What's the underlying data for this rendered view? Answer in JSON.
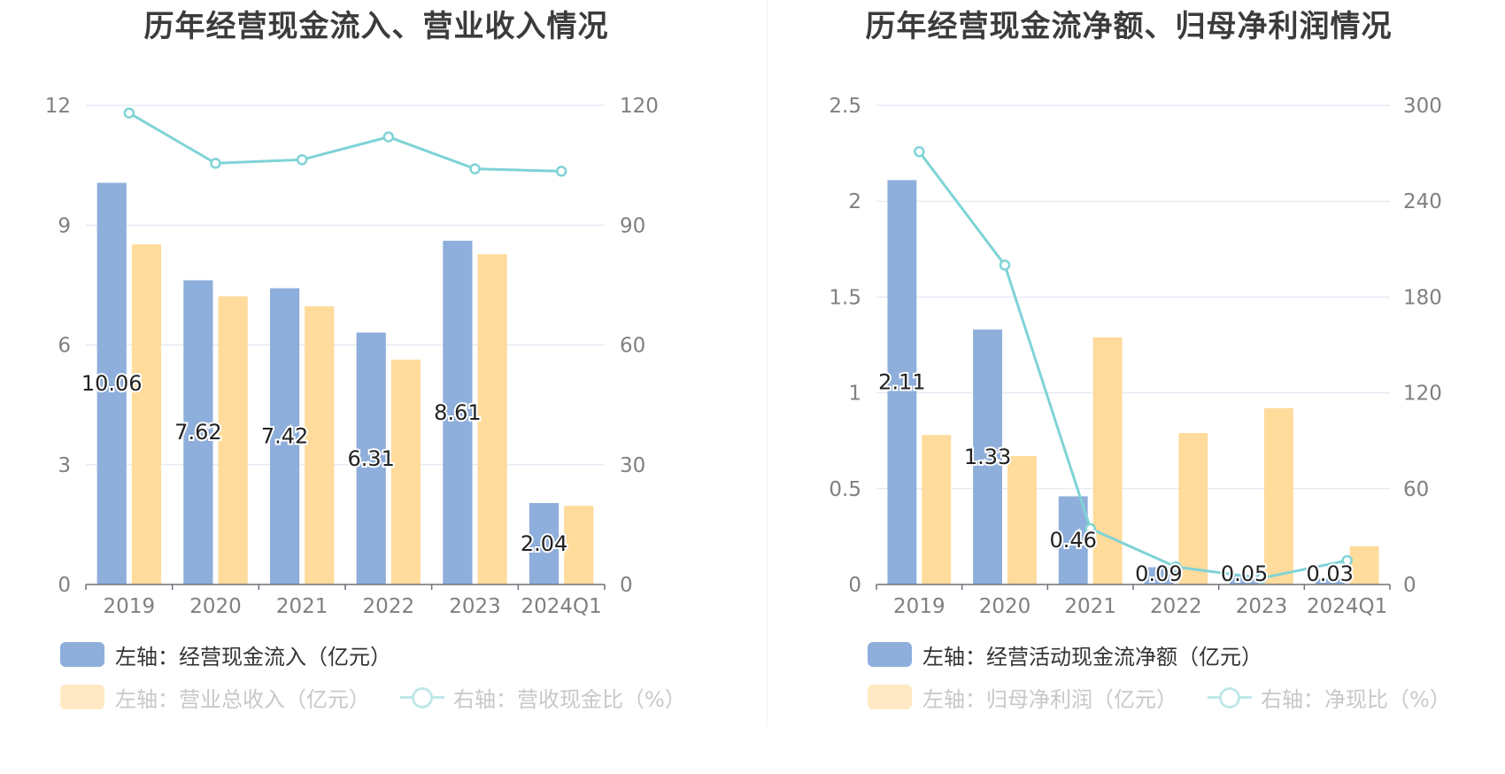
{
  "colors": {
    "bar_primary": "#8eaedb",
    "bar_secondary": "#ffdb9c",
    "line": "#7fd3d6",
    "grid": "#dde3f0",
    "axis_text": "#808080",
    "legend_inactive": "#c8c8c8",
    "legend_active": "#333333"
  },
  "chart_data": [
    {
      "type": "bar",
      "title": "历年经营现金流入、营业收入情况",
      "categories": [
        "2019",
        "2020",
        "2021",
        "2022",
        "2023",
        "2024Q1"
      ],
      "left_axis": {
        "ticks": [
          "0",
          "3",
          "6",
          "9",
          "12"
        ],
        "min": 0,
        "max": 12
      },
      "right_axis": {
        "ticks": [
          "0",
          "30",
          "60",
          "90",
          "120"
        ],
        "min": 0,
        "max": 120
      },
      "series": [
        {
          "name": "左轴：经营现金流入（亿元）",
          "axis": "left",
          "kind": "bar",
          "values": [
            10.06,
            7.62,
            7.42,
            6.31,
            8.61,
            2.04
          ],
          "labels": [
            "10.06",
            "7.62",
            "7.42",
            "6.31",
            "8.61",
            "2.04"
          ]
        },
        {
          "name": "左轴：营业总收入（亿元）",
          "axis": "left",
          "kind": "bar",
          "values": [
            8.52,
            7.22,
            6.97,
            5.63,
            8.27,
            1.97
          ]
        },
        {
          "name": "右轴：营收现金比（%）",
          "axis": "right",
          "kind": "line",
          "values": [
            118.1,
            105.5,
            106.4,
            112.1,
            104.1,
            103.5
          ]
        }
      ],
      "legend": [
        {
          "label": "左轴：经营现金流入（亿元）",
          "style": "bar_primary",
          "active": true
        },
        {
          "label": "左轴：营业总收入（亿元）",
          "style": "bar_secondary",
          "active": false
        },
        {
          "label": "右轴：营收现金比（%）",
          "style": "line",
          "active": false
        }
      ]
    },
    {
      "type": "bar",
      "title": "历年经营现金流净额、归母净利润情况",
      "categories": [
        "2019",
        "2020",
        "2021",
        "2022",
        "2023",
        "2024Q1"
      ],
      "left_axis": {
        "ticks": [
          "0",
          "0.5",
          "1",
          "1.5",
          "2",
          "2.5"
        ],
        "min": 0,
        "max": 2.5
      },
      "right_axis": {
        "ticks": [
          "0",
          "60",
          "120",
          "180",
          "240",
          "300"
        ],
        "min": 0,
        "max": 300
      },
      "series": [
        {
          "name": "左轴：经营活动现金流净额（亿元）",
          "axis": "left",
          "kind": "bar",
          "values": [
            2.11,
            1.33,
            0.46,
            0.09,
            0.05,
            0.03
          ],
          "labels": [
            "2.11",
            "1.33",
            "0.46",
            "0.09",
            "0.05",
            "0.03"
          ]
        },
        {
          "name": "左轴：归母净利润（亿元）",
          "axis": "left",
          "kind": "bar",
          "values": [
            0.78,
            0.67,
            1.29,
            0.79,
            0.92,
            0.2
          ]
        },
        {
          "name": "右轴：净现比（%）",
          "axis": "right",
          "kind": "line",
          "values": [
            271,
            200,
            35,
            11,
            4,
            15
          ]
        }
      ],
      "legend": [
        {
          "label": "左轴：经营活动现金流净额（亿元）",
          "style": "bar_primary",
          "active": true
        },
        {
          "label": "左轴：归母净利润（亿元）",
          "style": "bar_secondary",
          "active": false
        },
        {
          "label": "右轴：净现比（%）",
          "style": "line",
          "active": false
        }
      ]
    }
  ]
}
